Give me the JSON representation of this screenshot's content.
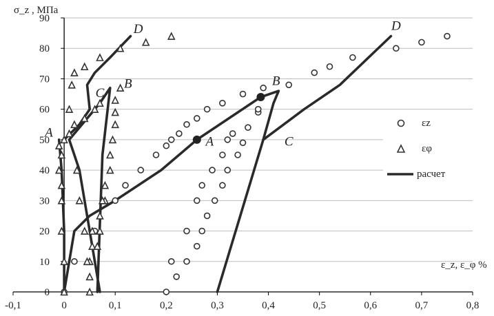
{
  "chart_data": {
    "type": "scatter",
    "title": "",
    "xlabel": "ε_z, ε_φ %",
    "ylabel": "σ_z , МПа",
    "xlim": [
      -0.1,
      0.8
    ],
    "ylim": [
      0,
      90
    ],
    "x_ticks": [
      "-0,1",
      "0",
      "0,1",
      "0,2",
      "0,3",
      "0,4",
      "0,5",
      "0,6",
      "0,7",
      "0,8"
    ],
    "y_ticks": [
      "0",
      "10",
      "20",
      "30",
      "40",
      "50",
      "60",
      "70",
      "80",
      "90"
    ],
    "grid": "horizontal",
    "legend_position": "right",
    "series": [
      {
        "name": "εz",
        "marker": "circle",
        "points": [
          [
            0.2,
            0
          ],
          [
            0.22,
            5
          ],
          [
            0.21,
            10
          ],
          [
            0.24,
            10
          ],
          [
            0.26,
            15
          ],
          [
            0.27,
            20
          ],
          [
            0.24,
            20
          ],
          [
            0.28,
            25
          ],
          [
            0.26,
            30
          ],
          [
            0.295,
            30
          ],
          [
            0.27,
            35
          ],
          [
            0.31,
            35
          ],
          [
            0.29,
            40
          ],
          [
            0.32,
            40
          ],
          [
            0.34,
            45
          ],
          [
            0.31,
            45
          ],
          [
            0.35,
            49
          ],
          [
            0.32,
            50
          ],
          [
            0.33,
            52
          ],
          [
            0.36,
            54
          ],
          [
            0.38,
            59
          ],
          [
            0.38,
            60
          ],
          [
            0.39,
            67
          ],
          [
            0.44,
            68
          ],
          [
            0.49,
            72
          ],
          [
            0.52,
            74
          ],
          [
            0.565,
            77
          ],
          [
            0.65,
            80
          ],
          [
            0.7,
            82
          ],
          [
            0.75,
            84
          ],
          [
            0.35,
            65
          ],
          [
            0.31,
            62
          ],
          [
            0.28,
            60
          ],
          [
            0.26,
            57
          ],
          [
            0.24,
            55
          ],
          [
            0.225,
            52
          ],
          [
            0.21,
            50
          ],
          [
            0.2,
            48
          ],
          [
            0.18,
            45
          ],
          [
            0.15,
            40
          ],
          [
            0.12,
            35
          ],
          [
            0.1,
            30
          ],
          [
            0.06,
            20
          ],
          [
            0.02,
            10
          ],
          [
            0,
            0
          ]
        ]
      },
      {
        "name": "εφ",
        "marker": "triangle",
        "points": [
          [
            0.05,
            0
          ],
          [
            0.05,
            5
          ],
          [
            0.05,
            10
          ],
          [
            0.055,
            15
          ],
          [
            0.055,
            20
          ],
          [
            0.07,
            25
          ],
          [
            0.08,
            30
          ],
          [
            0.08,
            35
          ],
          [
            0.09,
            40
          ],
          [
            0.09,
            45
          ],
          [
            0.095,
            50
          ],
          [
            0.1,
            55
          ],
          [
            0.1,
            59
          ],
          [
            0.1,
            63
          ],
          [
            0.11,
            67
          ],
          [
            0.11,
            80
          ],
          [
            0.16,
            82
          ],
          [
            0.21,
            84
          ],
          [
            0.07,
            77
          ],
          [
            0.04,
            74
          ],
          [
            0.02,
            72
          ],
          [
            0.015,
            68
          ],
          [
            0.01,
            60
          ],
          [
            0.04,
            57
          ],
          [
            0.06,
            60
          ],
          [
            0.07,
            62
          ],
          [
            0.02,
            55
          ],
          [
            0.01,
            52
          ],
          [
            0.0,
            50
          ],
          [
            -0.01,
            48
          ],
          [
            -0.005,
            45
          ],
          [
            -0.01,
            40
          ],
          [
            -0.005,
            35
          ],
          [
            -0.005,
            30
          ],
          [
            -0.005,
            20
          ],
          [
            0.0,
            10
          ],
          [
            0.0,
            0
          ],
          [
            0.025,
            40
          ],
          [
            0.03,
            30
          ],
          [
            0.04,
            20
          ],
          [
            0.045,
            10
          ],
          [
            0.075,
            30
          ],
          [
            0.07,
            20
          ],
          [
            0.065,
            15
          ]
        ]
      }
    ],
    "lines": [
      {
        "name": "расчет",
        "role": "volumetric",
        "points": [
          [
            0,
            0
          ],
          [
            0.02,
            20
          ],
          [
            0.05,
            25
          ],
          [
            0.1,
            30
          ],
          [
            0.19,
            40
          ],
          [
            0.26,
            50
          ],
          [
            0.385,
            64
          ],
          [
            0.42,
            66
          ],
          [
            0.41,
            62
          ],
          [
            0.39,
            50
          ],
          [
            0.3,
            0
          ]
        ]
      },
      {
        "name": "расчет",
        "role": "axial",
        "points": [
          [
            0.39,
            50
          ],
          [
            0.47,
            60
          ],
          [
            0.54,
            68
          ],
          [
            0.64,
            84
          ]
        ]
      },
      {
        "name": "расчет",
        "role": "lateral",
        "points": [
          [
            0.07,
            0
          ],
          [
            0.05,
            20
          ],
          [
            0.03,
            40
          ],
          [
            0.01,
            50
          ],
          [
            0.07,
            62
          ],
          [
            0.09,
            67
          ],
          [
            0.075,
            45
          ],
          [
            0.065,
            0
          ]
        ]
      },
      {
        "name": "расчет",
        "role": "lateral-upper",
        "points": [
          [
            0.0,
            50
          ],
          [
            0.03,
            55
          ],
          [
            0.05,
            60
          ],
          [
            0.045,
            68
          ],
          [
            0.06,
            72
          ],
          [
            0.09,
            77
          ],
          [
            0.13,
            84
          ]
        ]
      },
      {
        "name": "расчет",
        "role": "lateral-left",
        "points": [
          [
            -0.01,
            50
          ],
          [
            -0.005,
            40
          ],
          [
            0.0,
            20
          ],
          [
            0.0,
            0
          ]
        ]
      }
    ],
    "highlight_points": [
      [
        0.26,
        50
      ],
      [
        0.385,
        64
      ]
    ],
    "annotations": [
      {
        "text": "A",
        "x": -0.03,
        "y": 51
      },
      {
        "text": "C",
        "x": 0.07,
        "y": 64
      },
      {
        "text": "B",
        "x": 0.125,
        "y": 67
      },
      {
        "text": "D",
        "x": 0.145,
        "y": 85
      },
      {
        "text": "A",
        "x": 0.285,
        "y": 48
      },
      {
        "text": "B",
        "x": 0.415,
        "y": 68
      },
      {
        "text": "C",
        "x": 0.44,
        "y": 48
      },
      {
        "text": "D",
        "x": 0.65,
        "y": 86
      }
    ],
    "legend": [
      {
        "label": "εz",
        "marker": "circle"
      },
      {
        "label": "εφ",
        "marker": "triangle"
      },
      {
        "label": "расчет",
        "marker": "line"
      }
    ]
  }
}
